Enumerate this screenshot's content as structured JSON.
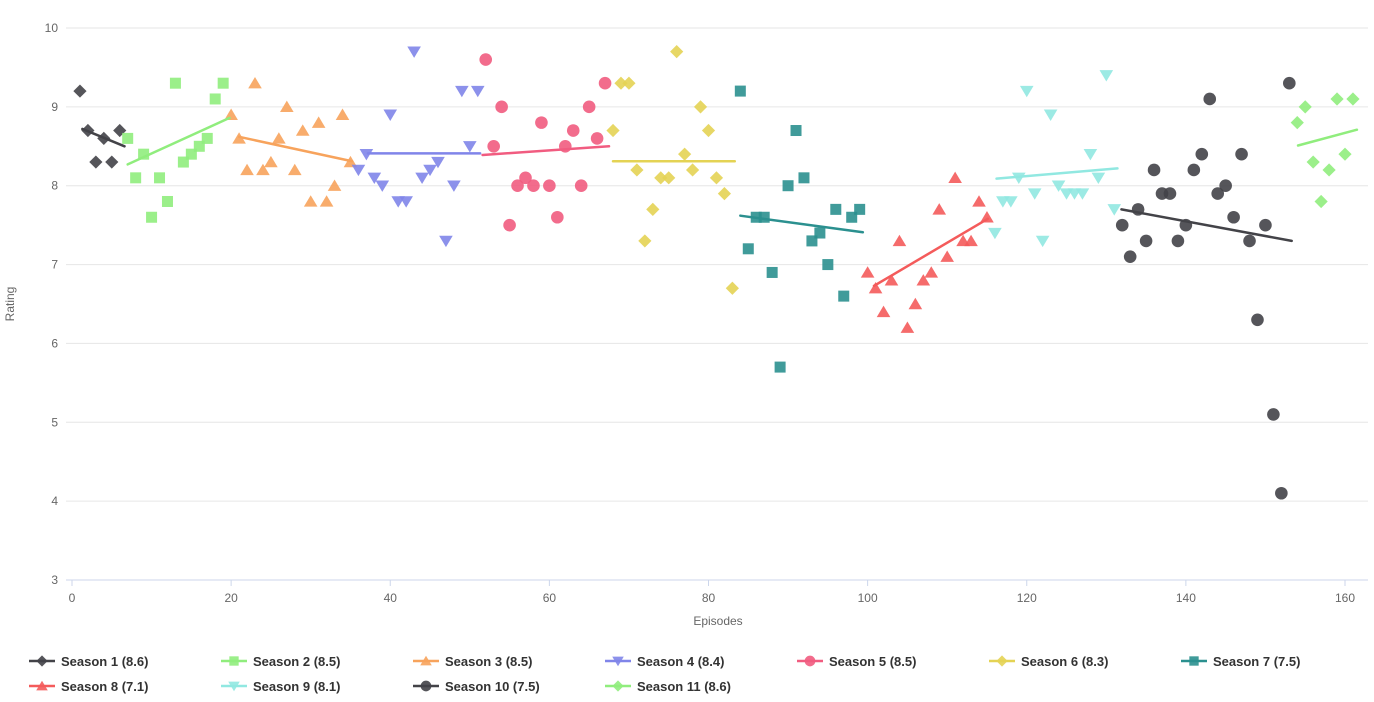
{
  "chart_data": {
    "type": "scatter",
    "title": "",
    "xlabel": "Episodes",
    "ylabel": "Rating",
    "xlim": [
      0,
      163
    ],
    "ylim": [
      3,
      10
    ],
    "x_ticks": [
      0,
      20,
      40,
      60,
      80,
      100,
      120,
      140,
      160
    ],
    "y_ticks": [
      3,
      4,
      5,
      6,
      7,
      8,
      9,
      10
    ],
    "grid": true,
    "legend_position": "bottom",
    "axis_color": "#ccd6eb",
    "grid_color": "#e6e6e6",
    "series": [
      {
        "name": "Season 1",
        "legend_label": "Season 1 (8.6)",
        "avg_rating": 8.6,
        "color": "#434348",
        "marker": "diamond",
        "points": [
          [
            1,
            9.2
          ],
          [
            2,
            8.7
          ],
          [
            3,
            8.3
          ],
          [
            4,
            8.6
          ],
          [
            5,
            8.3
          ],
          [
            6,
            8.7
          ]
        ],
        "trend": [
          [
            1.3,
            8.72
          ],
          [
            6.6,
            8.5
          ]
        ]
      },
      {
        "name": "Season 2",
        "legend_label": "Season 2 (8.5)",
        "avg_rating": 8.5,
        "color": "#90ed7d",
        "marker": "square",
        "points": [
          [
            7,
            8.6
          ],
          [
            8,
            8.1
          ],
          [
            9,
            8.4
          ],
          [
            10,
            7.6
          ],
          [
            11,
            8.1
          ],
          [
            12,
            7.8
          ],
          [
            13,
            9.3
          ],
          [
            14,
            8.3
          ],
          [
            15,
            8.4
          ],
          [
            16,
            8.5
          ],
          [
            17,
            8.6
          ],
          [
            18,
            9.1
          ],
          [
            19,
            9.3
          ]
        ],
        "trend": [
          [
            7,
            8.27
          ],
          [
            19.8,
            8.86
          ]
        ]
      },
      {
        "name": "Season 3",
        "legend_label": "Season 3 (8.5)",
        "avg_rating": 8.5,
        "color": "#f7a35c",
        "marker": "triangle",
        "points": [
          [
            20,
            8.9
          ],
          [
            21,
            8.6
          ],
          [
            22,
            8.2
          ],
          [
            23,
            9.3
          ],
          [
            24,
            8.2
          ],
          [
            25,
            8.3
          ],
          [
            26,
            8.6
          ],
          [
            27,
            9.0
          ],
          [
            28,
            8.2
          ],
          [
            29,
            8.7
          ],
          [
            30,
            7.8
          ],
          [
            31,
            8.8
          ],
          [
            32,
            7.8
          ],
          [
            33,
            8.0
          ],
          [
            34,
            8.9
          ],
          [
            35,
            8.3
          ]
        ],
        "trend": [
          [
            21,
            8.62
          ],
          [
            35.2,
            8.31
          ]
        ]
      },
      {
        "name": "Season 4",
        "legend_label": "Season 4 (8.4)",
        "avg_rating": 8.4,
        "color": "#8085e9",
        "marker": "triangle-down",
        "points": [
          [
            36,
            8.2
          ],
          [
            37,
            8.4
          ],
          [
            38,
            8.1
          ],
          [
            39,
            8.0
          ],
          [
            40,
            8.9
          ],
          [
            41,
            7.8
          ],
          [
            42,
            7.8
          ],
          [
            43,
            9.7
          ],
          [
            44,
            8.1
          ],
          [
            45,
            8.2
          ],
          [
            46,
            8.3
          ],
          [
            47,
            7.3
          ],
          [
            48,
            8.0
          ],
          [
            49,
            9.2
          ],
          [
            50,
            8.5
          ],
          [
            51,
            9.2
          ]
        ],
        "trend": [
          [
            37.2,
            8.41
          ],
          [
            51.3,
            8.41
          ]
        ]
      },
      {
        "name": "Season 5",
        "legend_label": "Season 5 (8.5)",
        "avg_rating": 8.5,
        "color": "#f15c80",
        "marker": "circle",
        "points": [
          [
            52,
            9.6
          ],
          [
            53,
            8.5
          ],
          [
            54,
            9.0
          ],
          [
            55,
            7.5
          ],
          [
            56,
            8.0
          ],
          [
            57,
            8.1
          ],
          [
            58,
            8.0
          ],
          [
            59,
            8.8
          ],
          [
            60,
            8.0
          ],
          [
            61,
            7.6
          ],
          [
            62,
            8.5
          ],
          [
            63,
            8.7
          ],
          [
            64,
            8.0
          ],
          [
            65,
            9.0
          ],
          [
            66,
            8.6
          ],
          [
            67,
            9.3
          ]
        ],
        "trend": [
          [
            51.6,
            8.39
          ],
          [
            67.5,
            8.5
          ]
        ]
      },
      {
        "name": "Season 6",
        "legend_label": "Season 6 (8.3)",
        "avg_rating": 8.3,
        "color": "#e4d354",
        "marker": "diamond",
        "points": [
          [
            68,
            8.7
          ],
          [
            69,
            9.3
          ],
          [
            70,
            9.3
          ],
          [
            71,
            8.2
          ],
          [
            72,
            7.3
          ],
          [
            73,
            7.7
          ],
          [
            74,
            8.1
          ],
          [
            75,
            8.1
          ],
          [
            76,
            9.7
          ],
          [
            77,
            8.4
          ],
          [
            78,
            8.2
          ],
          [
            79,
            9.0
          ],
          [
            80,
            8.7
          ],
          [
            81,
            8.1
          ],
          [
            82,
            7.9
          ],
          [
            83,
            6.7
          ]
        ],
        "trend": [
          [
            68,
            8.31
          ],
          [
            83.3,
            8.31
          ]
        ]
      },
      {
        "name": "Season 7",
        "legend_label": "Season 7 (7.5)",
        "avg_rating": 7.5,
        "color": "#2b908f",
        "marker": "square",
        "points": [
          [
            84,
            9.2
          ],
          [
            85,
            7.2
          ],
          [
            86,
            7.6
          ],
          [
            87,
            7.6
          ],
          [
            88,
            6.9
          ],
          [
            89,
            5.7
          ],
          [
            90,
            8.0
          ],
          [
            91,
            8.7
          ],
          [
            92,
            8.1
          ],
          [
            93,
            7.3
          ],
          [
            94,
            7.4
          ],
          [
            95,
            7.0
          ],
          [
            96,
            7.7
          ],
          [
            97,
            6.6
          ],
          [
            98,
            7.6
          ],
          [
            99,
            7.7
          ]
        ],
        "trend": [
          [
            84,
            7.62
          ],
          [
            99.4,
            7.41
          ]
        ]
      },
      {
        "name": "Season 8",
        "legend_label": "Season 8 (7.1)",
        "avg_rating": 7.1,
        "color": "#f45b5b",
        "marker": "triangle",
        "points": [
          [
            100,
            6.9
          ],
          [
            101,
            6.7
          ],
          [
            102,
            6.4
          ],
          [
            103,
            6.8
          ],
          [
            104,
            7.3
          ],
          [
            105,
            6.2
          ],
          [
            106,
            6.5
          ],
          [
            107,
            6.8
          ],
          [
            108,
            6.9
          ],
          [
            109,
            7.7
          ],
          [
            110,
            7.1
          ],
          [
            111,
            8.1
          ],
          [
            112,
            7.3
          ],
          [
            113,
            7.3
          ],
          [
            114,
            7.8
          ],
          [
            115,
            7.6
          ]
        ],
        "trend": [
          [
            100.8,
            6.73
          ],
          [
            115.1,
            7.58
          ]
        ]
      },
      {
        "name": "Season 9",
        "legend_label": "Season 9 (8.1)",
        "avg_rating": 8.1,
        "color": "#91e8e1",
        "marker": "triangle-down",
        "points": [
          [
            116,
            7.4
          ],
          [
            117,
            7.8
          ],
          [
            118,
            7.8
          ],
          [
            119,
            8.1
          ],
          [
            120,
            9.2
          ],
          [
            121,
            7.9
          ],
          [
            122,
            7.3
          ],
          [
            123,
            8.9
          ],
          [
            124,
            8.0
          ],
          [
            125,
            7.9
          ],
          [
            126,
            7.9
          ],
          [
            127,
            7.9
          ],
          [
            128,
            8.4
          ],
          [
            129,
            8.1
          ],
          [
            130,
            9.4
          ],
          [
            131,
            7.7
          ]
        ],
        "trend": [
          [
            116.2,
            8.09
          ],
          [
            131.4,
            8.22
          ]
        ]
      },
      {
        "name": "Season 10",
        "legend_label": "Season 10 (7.5)",
        "avg_rating": 7.5,
        "color": "#434348",
        "marker": "circle",
        "points": [
          [
            132,
            7.5
          ],
          [
            133,
            7.1
          ],
          [
            134,
            7.7
          ],
          [
            135,
            7.3
          ],
          [
            136,
            8.2
          ],
          [
            137,
            7.9
          ],
          [
            138,
            7.9
          ],
          [
            139,
            7.3
          ],
          [
            140,
            7.5
          ],
          [
            141,
            8.2
          ],
          [
            142,
            8.4
          ],
          [
            143,
            9.1
          ],
          [
            144,
            7.9
          ],
          [
            145,
            8.0
          ],
          [
            146,
            7.6
          ],
          [
            147,
            8.4
          ],
          [
            148,
            7.3
          ],
          [
            149,
            6.3
          ],
          [
            150,
            7.5
          ],
          [
            151,
            5.1
          ],
          [
            152,
            4.1
          ],
          [
            153,
            9.3
          ]
        ],
        "trend": [
          [
            131.9,
            7.7
          ],
          [
            153.3,
            7.3
          ]
        ]
      },
      {
        "name": "Season 11",
        "legend_label": "Season 11 (8.6)",
        "avg_rating": 8.6,
        "color": "#90ed7d",
        "marker": "diamond",
        "points": [
          [
            154,
            8.8
          ],
          [
            155,
            9.0
          ],
          [
            156,
            8.3
          ],
          [
            157,
            7.8
          ],
          [
            158,
            8.2
          ],
          [
            159,
            9.1
          ],
          [
            160,
            8.4
          ],
          [
            161,
            9.1
          ]
        ],
        "trend": [
          [
            154.1,
            8.51
          ],
          [
            161.5,
            8.71
          ]
        ]
      }
    ]
  }
}
